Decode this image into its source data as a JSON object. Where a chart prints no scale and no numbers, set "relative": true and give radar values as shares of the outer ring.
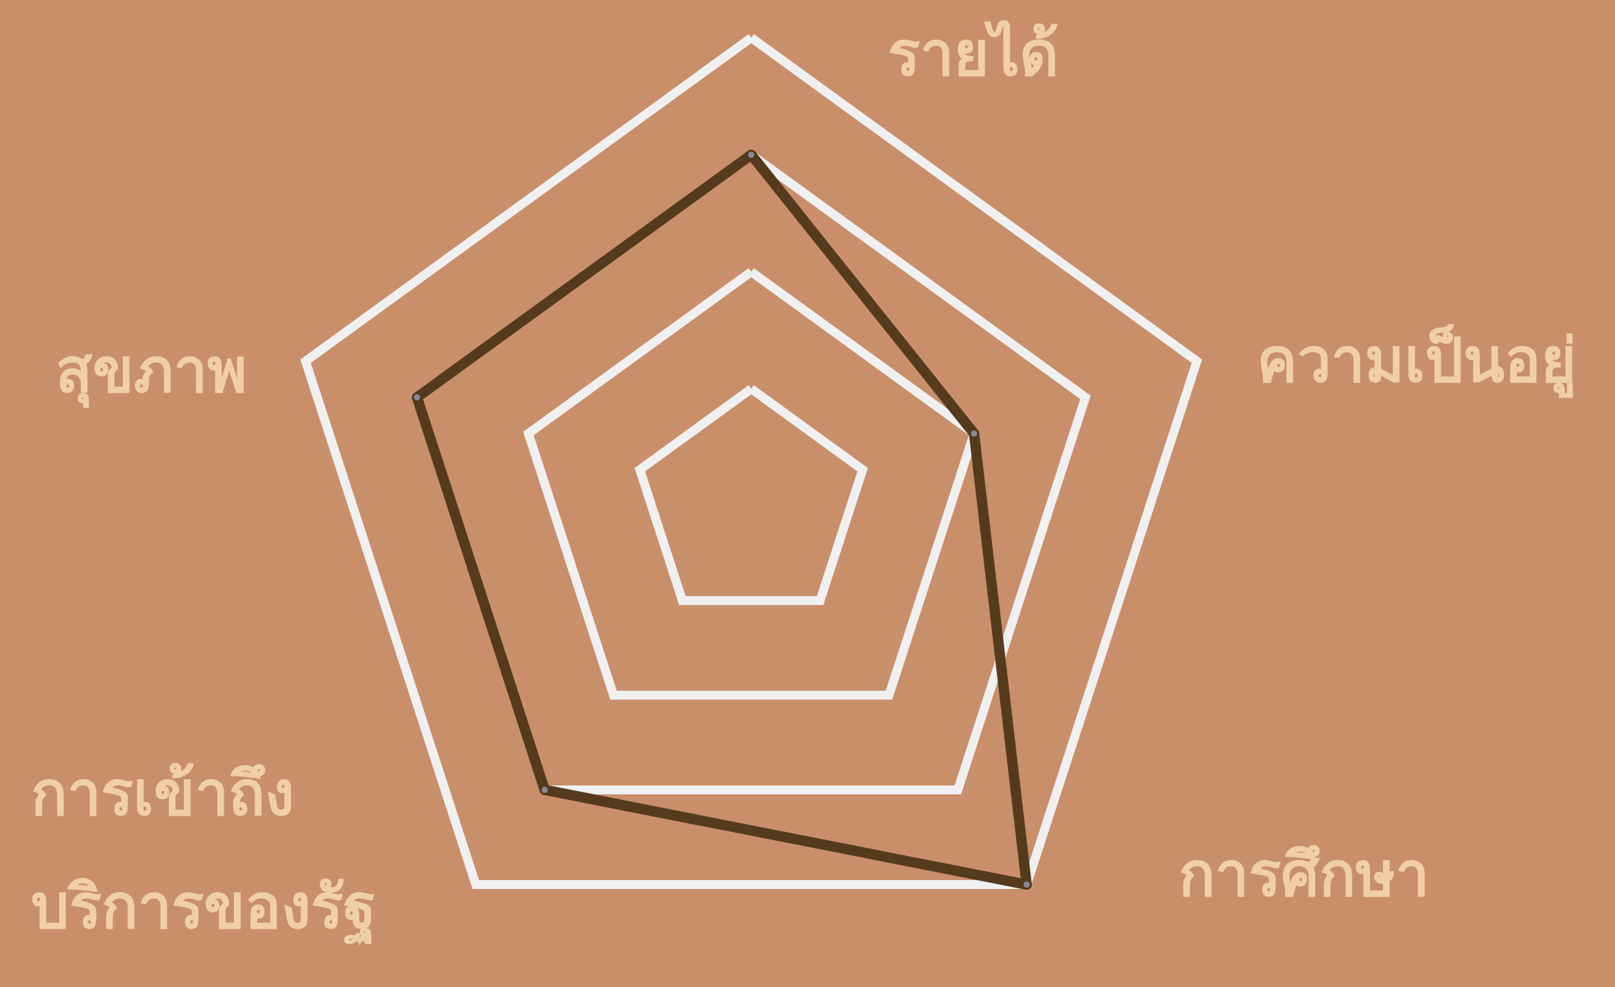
{
  "chart_data": {
    "type": "radar",
    "relative": true,
    "categories": [
      "รายได้",
      "ความเป็นอยู่",
      "การศึกษา",
      "การเข้าถึง\nบริการของรัฐ",
      "สุขภาพ"
    ],
    "series": [
      {
        "color": "#553a1e",
        "values": [
          0.75,
          0.5,
          1,
          0.75,
          0.75
        ]
      }
    ],
    "marker": "circle",
    "line_style": "solid"
  }
}
